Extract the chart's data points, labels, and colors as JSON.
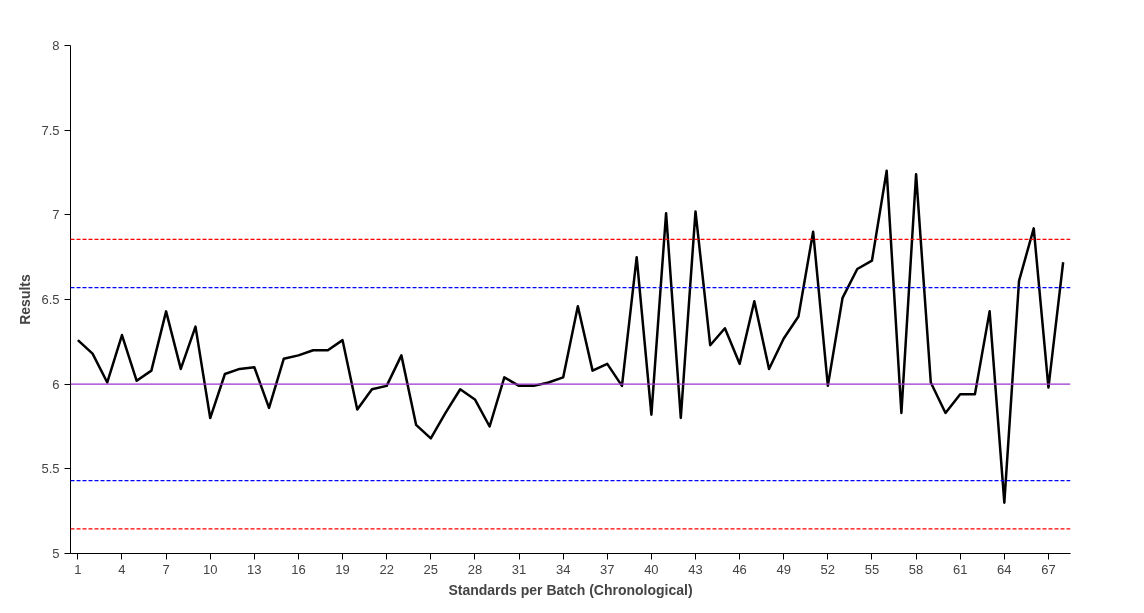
{
  "chart_data": {
    "type": "line",
    "xlabel": "Standards per Batch (Chronological)",
    "ylabel": "Results",
    "x": [
      1,
      2,
      3,
      4,
      5,
      6,
      7,
      8,
      9,
      10,
      11,
      12,
      13,
      14,
      15,
      16,
      17,
      18,
      19,
      20,
      21,
      22,
      23,
      24,
      25,
      26,
      27,
      28,
      29,
      30,
      31,
      32,
      33,
      34,
      35,
      36,
      37,
      38,
      39,
      40,
      41,
      42,
      43,
      44,
      45,
      46,
      47,
      48,
      49,
      50,
      51,
      52,
      53,
      54,
      55,
      56,
      57,
      58,
      59,
      60,
      61,
      62,
      63,
      64,
      65,
      66,
      67,
      68
    ],
    "series": [
      {
        "color": "#000000",
        "values": [
          6.26,
          6.18,
          6.01,
          6.29,
          6.02,
          6.08,
          6.43,
          6.09,
          6.34,
          5.8,
          6.06,
          6.09,
          6.1,
          5.86,
          6.15,
          6.17,
          6.2,
          6.2,
          6.26,
          5.85,
          5.97,
          5.99,
          6.17,
          5.76,
          5.68,
          5.83,
          5.97,
          5.91,
          5.75,
          6.04,
          5.99,
          5.99,
          6.01,
          6.04,
          6.46,
          6.08,
          6.12,
          5.99,
          6.75,
          5.82,
          7.01,
          5.8,
          7.02,
          6.23,
          6.33,
          6.12,
          6.49,
          6.09,
          6.27,
          6.4,
          6.9,
          5.99,
          6.51,
          6.68,
          6.73,
          7.26,
          5.83,
          7.24,
          6.01,
          5.83,
          5.94,
          5.94,
          6.43,
          5.3,
          6.61,
          6.92,
          5.98,
          6.72
        ]
      }
    ],
    "xlim": [
      0.5,
      68.5
    ],
    "xticks": [
      1,
      4,
      7,
      10,
      13,
      16,
      19,
      22,
      25,
      28,
      31,
      34,
      37,
      40,
      43,
      46,
      49,
      52,
      55,
      58,
      61,
      64,
      67
    ],
    "ylim": [
      5,
      8
    ],
    "yticks": [
      5,
      5.5,
      6,
      6.5,
      7,
      7.5,
      8
    ],
    "ref_lines": [
      {
        "axis": "y",
        "value": 6,
        "color": "#9933cc",
        "line_style": "solid"
      },
      {
        "axis": "y",
        "value": 6.57,
        "color": "#0000ff",
        "line_style": "dashed"
      },
      {
        "axis": "y",
        "value": 5.43,
        "color": "#0000ff",
        "line_style": "dashed"
      },
      {
        "axis": "y",
        "value": 6.855,
        "color": "#ff0000",
        "line_style": "dashed"
      },
      {
        "axis": "y",
        "value": 5.145,
        "color": "#ff0000",
        "line_style": "dashed"
      }
    ],
    "grid": false,
    "marker": "none",
    "line_style": "solid"
  }
}
